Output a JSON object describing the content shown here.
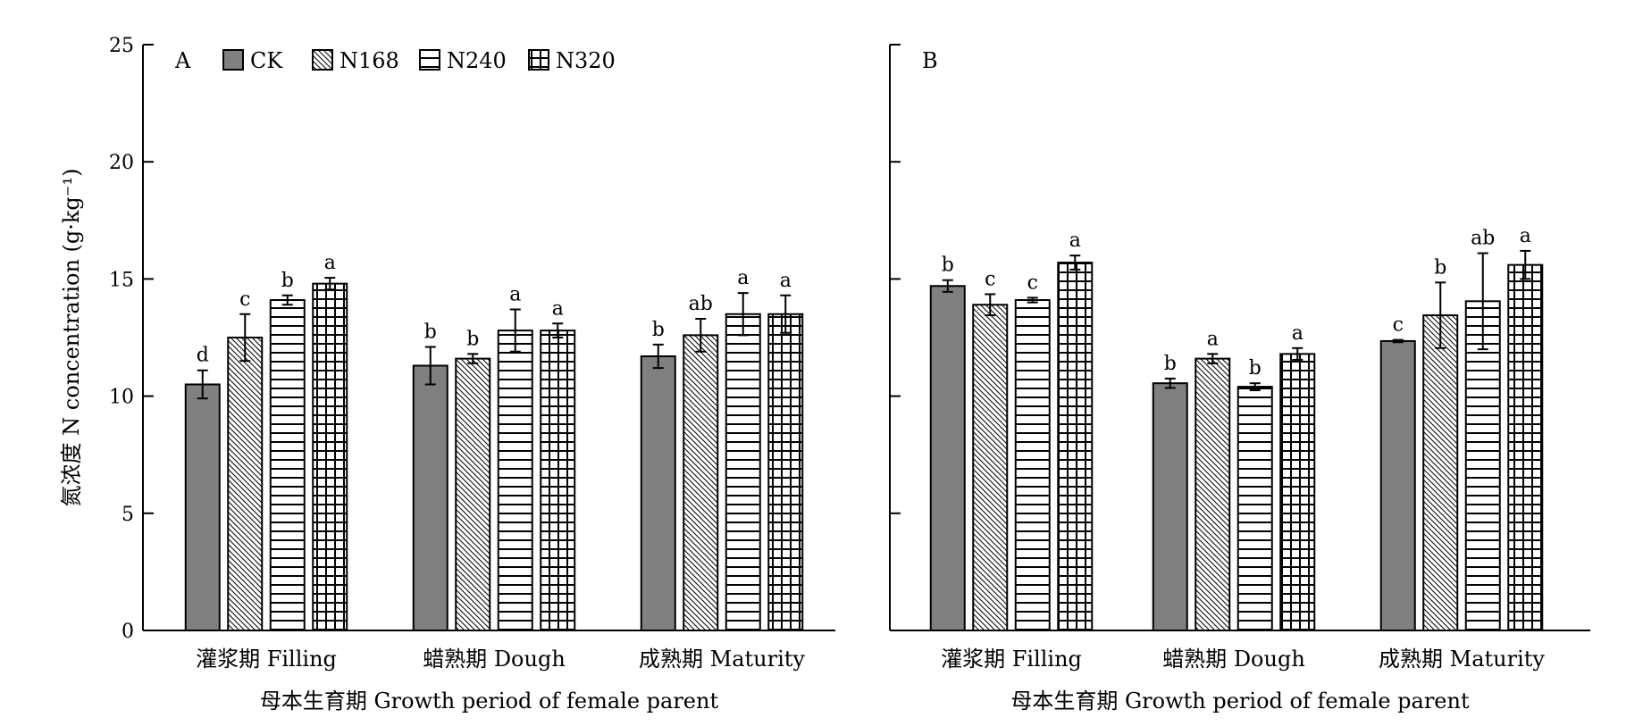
{
  "chart_data": [
    {
      "type": "bar",
      "panel": "A",
      "ylabel": "氮浓度 N concentration (g·kg⁻¹)",
      "xlabel": "母本生育期 Growth period of female parent",
      "ylim": [
        0,
        25
      ],
      "yticks": [
        "0",
        "5",
        "10",
        "15",
        "20",
        "25"
      ],
      "categories": [
        "灌浆期 Filling",
        "蜡熟期 Dough",
        "成熟期 Maturity"
      ],
      "series": [
        {
          "name": "CK",
          "values": [
            10.5,
            11.3,
            11.7
          ],
          "errors": [
            0.6,
            0.8,
            0.5
          ],
          "letters": [
            "d",
            "b",
            "b"
          ]
        },
        {
          "name": "N168",
          "values": [
            12.5,
            11.6,
            12.6
          ],
          "errors": [
            1.0,
            0.2,
            0.7
          ],
          "letters": [
            "c",
            "b",
            "ab"
          ]
        },
        {
          "name": "N240",
          "values": [
            14.1,
            12.8,
            13.5
          ],
          "errors": [
            0.2,
            0.9,
            0.9
          ],
          "letters": [
            "b",
            "a",
            "a"
          ]
        },
        {
          "name": "N320",
          "values": [
            14.8,
            12.8,
            13.5
          ],
          "errors": [
            0.25,
            0.3,
            0.8
          ],
          "letters": [
            "a",
            "a",
            "a"
          ]
        }
      ],
      "legend_position": "top"
    },
    {
      "type": "bar",
      "panel": "B",
      "ylabel": "",
      "xlabel": "母本生育期 Growth period of female parent",
      "ylim": [
        0,
        25
      ],
      "categories": [
        "灌浆期 Filling",
        "蜡熟期 Dough",
        "成熟期 Maturity"
      ],
      "series": [
        {
          "name": "CK",
          "values": [
            14.7,
            10.55,
            12.35
          ],
          "errors": [
            0.25,
            0.2,
            0.05
          ],
          "letters": [
            "b",
            "b",
            "c"
          ]
        },
        {
          "name": "N168",
          "values": [
            13.9,
            11.6,
            13.45
          ],
          "errors": [
            0.45,
            0.2,
            1.4
          ],
          "letters": [
            "c",
            "a",
            "b"
          ]
        },
        {
          "name": "N240",
          "values": [
            14.1,
            10.4,
            14.05
          ],
          "errors": [
            0.1,
            0.15,
            2.05
          ],
          "letters": [
            "c",
            "b",
            "ab"
          ]
        },
        {
          "name": "N320",
          "values": [
            15.7,
            11.8,
            15.6
          ],
          "errors": [
            0.3,
            0.25,
            0.6
          ],
          "letters": [
            "a",
            "a",
            "a"
          ]
        }
      ]
    }
  ],
  "colors": {
    "ck_fill": "#808080",
    "stroke": "#000000",
    "background": "#ffffff"
  }
}
